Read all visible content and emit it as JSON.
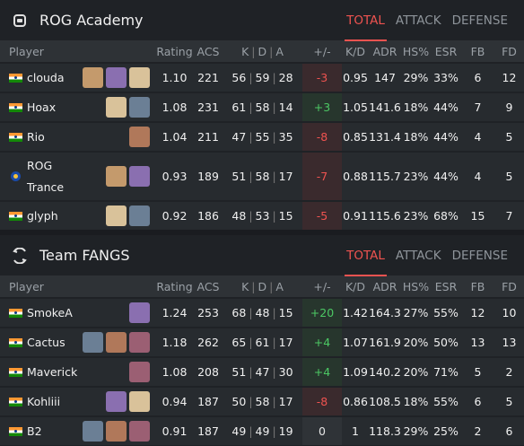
{
  "teams": [
    {
      "name": "ROG Academy",
      "logo": "rog-logo-icon",
      "tabs": [
        "TOTAL",
        "ATTACK",
        "DEFENSE"
      ],
      "active_tab": "TOTAL",
      "columns": [
        "Player",
        "Rating",
        "ACS",
        "K",
        "D",
        "A",
        "+/-",
        "K/D",
        "ADR",
        "HS%",
        "ESR",
        "FB",
        "FD"
      ],
      "players": [
        {
          "name": "clouda",
          "flag": "india-flag-icon",
          "agents": [
            "agent-icon",
            "agent-icon",
            "agent-icon"
          ],
          "rating": "1.10",
          "acs": "221",
          "k": "56",
          "d": "59",
          "a": "28",
          "pm": "-3",
          "kd": "0.95",
          "adr": "147",
          "hs": "29%",
          "esr": "33%",
          "fb": "6",
          "fd": "12"
        },
        {
          "name": "Hoax",
          "flag": "india-flag-icon",
          "agents": [
            "agent-icon",
            "agent-icon"
          ],
          "rating": "1.08",
          "acs": "231",
          "k": "61",
          "d": "58",
          "a": "14",
          "pm": "+3",
          "kd": "1.05",
          "adr": "141.6",
          "hs": "18%",
          "esr": "44%",
          "fb": "7",
          "fd": "9"
        },
        {
          "name": "Rio",
          "flag": "india-flag-icon",
          "agents": [
            "agent-icon"
          ],
          "rating": "1.04",
          "acs": "211",
          "k": "47",
          "d": "55",
          "a": "35",
          "pm": "-8",
          "kd": "0.85",
          "adr": "131.4",
          "hs": "18%",
          "esr": "44%",
          "fb": "4",
          "fd": "5"
        },
        {
          "name": "ROG Trance",
          "flag": "asean-flag-icon",
          "agents": [
            "agent-icon",
            "agent-icon"
          ],
          "rating": "0.93",
          "acs": "189",
          "k": "51",
          "d": "58",
          "a": "17",
          "pm": "-7",
          "kd": "0.88",
          "adr": "115.7",
          "hs": "23%",
          "esr": "44%",
          "fb": "4",
          "fd": "5"
        },
        {
          "name": "glyph",
          "flag": "india-flag-icon",
          "agents": [
            "agent-icon",
            "agent-icon"
          ],
          "rating": "0.92",
          "acs": "186",
          "k": "48",
          "d": "53",
          "a": "15",
          "pm": "-5",
          "kd": "0.91",
          "adr": "115.6",
          "hs": "23%",
          "esr": "68%",
          "fb": "15",
          "fd": "7"
        }
      ]
    },
    {
      "name": "Team FANGS",
      "logo": "fangs-logo-icon",
      "tabs": [
        "TOTAL",
        "ATTACK",
        "DEFENSE"
      ],
      "active_tab": "TOTAL",
      "columns": [
        "Player",
        "Rating",
        "ACS",
        "K",
        "D",
        "A",
        "+/-",
        "K/D",
        "ADR",
        "HS%",
        "ESR",
        "FB",
        "FD"
      ],
      "players": [
        {
          "name": "SmokeA",
          "flag": "india-flag-icon",
          "agents": [
            "agent-icon"
          ],
          "rating": "1.24",
          "acs": "253",
          "k": "68",
          "d": "48",
          "a": "15",
          "pm": "+20",
          "kd": "1.42",
          "adr": "164.3",
          "hs": "27%",
          "esr": "55%",
          "fb": "12",
          "fd": "10"
        },
        {
          "name": "Cactus",
          "flag": "india-flag-icon",
          "agents": [
            "agent-icon",
            "agent-icon",
            "agent-icon"
          ],
          "rating": "1.18",
          "acs": "262",
          "k": "65",
          "d": "61",
          "a": "17",
          "pm": "+4",
          "kd": "1.07",
          "adr": "161.9",
          "hs": "20%",
          "esr": "50%",
          "fb": "13",
          "fd": "13"
        },
        {
          "name": "Maverick",
          "flag": "india-flag-icon",
          "agents": [
            "agent-icon"
          ],
          "rating": "1.08",
          "acs": "208",
          "k": "51",
          "d": "47",
          "a": "30",
          "pm": "+4",
          "kd": "1.09",
          "adr": "140.2",
          "hs": "20%",
          "esr": "71%",
          "fb": "5",
          "fd": "2"
        },
        {
          "name": "Kohliii",
          "flag": "india-flag-icon",
          "agents": [
            "agent-icon",
            "agent-icon"
          ],
          "rating": "0.94",
          "acs": "187",
          "k": "50",
          "d": "58",
          "a": "17",
          "pm": "-8",
          "kd": "0.86",
          "adr": "108.5",
          "hs": "18%",
          "esr": "55%",
          "fb": "6",
          "fd": "5"
        },
        {
          "name": "B2",
          "flag": "india-flag-icon",
          "agents": [
            "agent-icon",
            "agent-icon",
            "agent-icon"
          ],
          "rating": "0.91",
          "acs": "187",
          "k": "49",
          "d": "49",
          "a": "19",
          "pm": "0",
          "kd": "1",
          "adr": "118.3",
          "hs": "29%",
          "esr": "25%",
          "fb": "2",
          "fd": "6"
        }
      ]
    }
  ],
  "colors": {
    "accent": "#ef5350",
    "positive": "#4cc864",
    "negative": "#ef5350",
    "background": "#1f2226",
    "row": "#272b2f"
  }
}
